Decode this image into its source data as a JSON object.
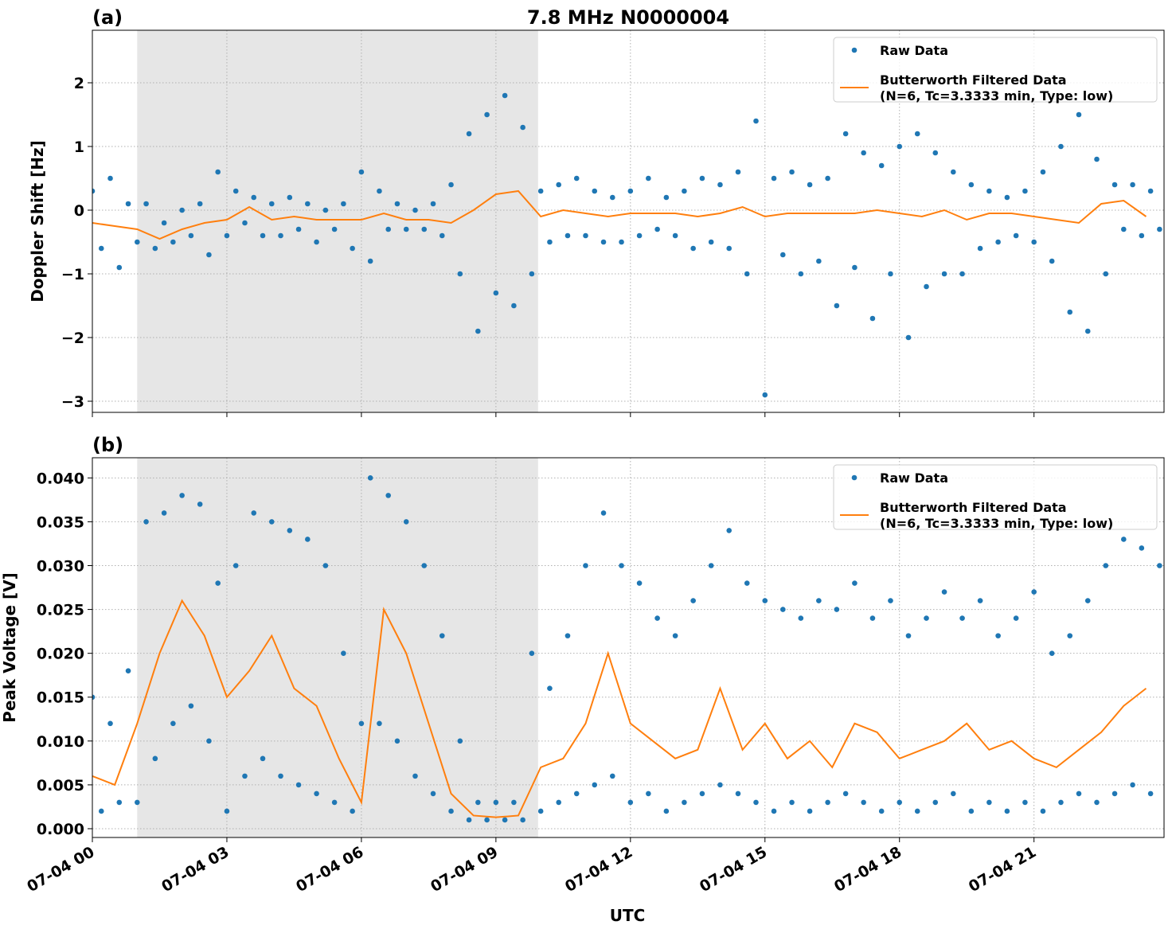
{
  "chart_data": [
    {
      "type": "scatter_line",
      "panel_label": "(a)",
      "title": "7.8 MHz N0000004",
      "ylabel": "Doppler Shift [Hz]",
      "xlim": [
        0,
        23.9
      ],
      "xticks": [
        0,
        3,
        6,
        9,
        12,
        15,
        18,
        21
      ],
      "ylim": [
        -3.175,
        2.825
      ],
      "yticks": [
        {
          "value": -3,
          "label": "−3"
        },
        {
          "value": -2,
          "label": "−2"
        },
        {
          "value": -1,
          "label": "−1"
        },
        0,
        1,
        2
      ],
      "grid": true,
      "legend": "upper-right",
      "shaded_span": [
        1.0,
        9.94
      ],
      "shade_color": "#e6e6e6",
      "series": [
        {
          "name": "Raw Data",
          "kind": "scatter",
          "color": "#1f77b4",
          "x": [
            0.0,
            0.2,
            0.4,
            0.6,
            0.8,
            1.0,
            1.2,
            1.4,
            1.6,
            1.8,
            2.0,
            2.2,
            2.4,
            2.6,
            2.8,
            3.0,
            3.2,
            3.4,
            3.6,
            3.8,
            4.0,
            4.2,
            4.4,
            4.6,
            4.8,
            5.0,
            5.2,
            5.4,
            5.6,
            5.8,
            6.0,
            6.2,
            6.4,
            6.6,
            6.8,
            7.0,
            7.2,
            7.4,
            7.6,
            7.8,
            8.0,
            8.2,
            8.4,
            8.6,
            8.8,
            9.0,
            9.2,
            9.4,
            9.6,
            9.8,
            10.0,
            10.2,
            10.4,
            10.6,
            10.8,
            11.0,
            11.2,
            11.4,
            11.6,
            11.8,
            12.0,
            12.2,
            12.4,
            12.6,
            12.8,
            13.0,
            13.2,
            13.4,
            13.6,
            13.8,
            14.0,
            14.2,
            14.4,
            14.6,
            14.8,
            15.0,
            15.2,
            15.4,
            15.6,
            15.8,
            16.0,
            16.2,
            16.4,
            16.6,
            16.8,
            17.0,
            17.2,
            17.4,
            17.6,
            17.8,
            18.0,
            18.2,
            18.4,
            18.6,
            18.8,
            19.0,
            19.2,
            19.4,
            19.6,
            19.8,
            20.0,
            20.2,
            20.4,
            20.6,
            20.8,
            21.0,
            21.2,
            21.4,
            21.6,
            21.8,
            22.0,
            22.2,
            22.4,
            22.6,
            22.8,
            23.0,
            23.2,
            23.4,
            23.6,
            23.8
          ],
          "values": [
            0.3,
            -0.6,
            0.5,
            -0.9,
            0.1,
            -0.5,
            0.1,
            -0.6,
            -0.2,
            -0.5,
            0.0,
            -0.4,
            0.1,
            -0.7,
            0.6,
            -0.4,
            0.3,
            -0.2,
            0.2,
            -0.4,
            0.1,
            -0.4,
            0.2,
            -0.3,
            0.1,
            -0.5,
            0.0,
            -0.3,
            0.1,
            -0.6,
            0.6,
            -0.8,
            0.3,
            -0.3,
            0.1,
            -0.3,
            0.0,
            -0.3,
            0.1,
            -0.4,
            0.4,
            -1.0,
            1.2,
            -1.9,
            1.5,
            -1.3,
            1.8,
            -1.5,
            1.3,
            -1.0,
            0.3,
            -0.5,
            0.4,
            -0.4,
            0.5,
            -0.4,
            0.3,
            -0.5,
            0.2,
            -0.5,
            0.3,
            -0.4,
            0.5,
            -0.3,
            0.2,
            -0.4,
            0.3,
            -0.6,
            0.5,
            -0.5,
            0.4,
            -0.6,
            0.6,
            -1.0,
            1.4,
            -2.9,
            0.5,
            -0.7,
            0.6,
            -1.0,
            0.4,
            -0.8,
            0.5,
            -1.5,
            1.2,
            -0.9,
            0.9,
            -1.7,
            0.7,
            -1.0,
            1.0,
            -2.0,
            1.2,
            -1.2,
            0.9,
            -1.0,
            0.6,
            -1.0,
            0.4,
            -0.6,
            0.3,
            -0.5,
            0.2,
            -0.4,
            0.3,
            -0.5,
            0.6,
            -0.8,
            1.0,
            -1.6,
            1.5,
            -1.9,
            0.8,
            -1.0,
            0.4,
            -0.3,
            0.4,
            -0.4,
            0.3,
            -0.3
          ]
        },
        {
          "name": "Butterworth Filtered Data\n(N=6, Tc=3.3333 min, Type: low)",
          "kind": "line",
          "color": "#ff7f0e",
          "x": [
            0,
            0.5,
            1,
            1.5,
            2,
            2.5,
            3,
            3.5,
            4,
            4.5,
            5,
            5.5,
            6,
            6.5,
            7,
            7.5,
            8,
            8.5,
            9,
            9.5,
            10,
            10.5,
            11,
            11.5,
            12,
            12.5,
            13,
            13.5,
            14,
            14.5,
            15,
            15.5,
            16,
            16.5,
            17,
            17.5,
            18,
            18.5,
            19,
            19.5,
            20,
            20.5,
            21,
            21.5,
            22,
            22.5,
            23,
            23.5
          ],
          "values": [
            -0.2,
            -0.25,
            -0.3,
            -0.45,
            -0.3,
            -0.2,
            -0.15,
            0.05,
            -0.15,
            -0.1,
            -0.15,
            -0.15,
            -0.15,
            -0.05,
            -0.15,
            -0.15,
            -0.2,
            0.0,
            0.25,
            0.3,
            -0.1,
            0.0,
            -0.05,
            -0.1,
            -0.05,
            -0.05,
            -0.05,
            -0.1,
            -0.05,
            0.05,
            -0.1,
            -0.05,
            -0.05,
            -0.05,
            -0.05,
            0.0,
            -0.05,
            -0.1,
            0.0,
            -0.15,
            -0.05,
            -0.05,
            -0.1,
            -0.15,
            -0.2,
            0.1,
            0.15,
            -0.1
          ]
        }
      ]
    },
    {
      "type": "scatter_line",
      "panel_label": "(b)",
      "ylabel": "Peak Voltage [V]",
      "xlabel": "UTC",
      "xlim": [
        0,
        23.9
      ],
      "xticks": [
        {
          "value": 0,
          "label": "07-04 00"
        },
        {
          "value": 3,
          "label": "07-04 03"
        },
        {
          "value": 6,
          "label": "07-04 06"
        },
        {
          "value": 9,
          "label": "07-04 09"
        },
        {
          "value": 12,
          "label": "07-04 12"
        },
        {
          "value": 15,
          "label": "07-04 15"
        },
        {
          "value": 18,
          "label": "07-04 18"
        },
        {
          "value": 21,
          "label": "07-04 21"
        }
      ],
      "ylim": [
        -0.001,
        0.0423
      ],
      "yticks": [
        {
          "value": 0,
          "label": "0.000"
        },
        {
          "value": 0.005,
          "label": "0.005"
        },
        {
          "value": 0.01,
          "label": "0.010"
        },
        {
          "value": 0.015,
          "label": "0.015"
        },
        {
          "value": 0.02,
          "label": "0.020"
        },
        {
          "value": 0.025,
          "label": "0.025"
        },
        {
          "value": 0.03,
          "label": "0.030"
        },
        {
          "value": 0.035,
          "label": "0.035"
        },
        {
          "value": 0.04,
          "label": "0.040"
        }
      ],
      "grid": true,
      "legend": "upper-right",
      "shaded_span": [
        1.0,
        9.94
      ],
      "shade_color": "#e6e6e6",
      "series": [
        {
          "name": "Raw Data",
          "kind": "scatter",
          "color": "#1f77b4",
          "x": [
            0.0,
            0.2,
            0.4,
            0.6,
            0.8,
            1.0,
            1.2,
            1.4,
            1.6,
            1.8,
            2.0,
            2.2,
            2.4,
            2.6,
            2.8,
            3.0,
            3.2,
            3.4,
            3.6,
            3.8,
            4.0,
            4.2,
            4.4,
            4.6,
            4.8,
            5.0,
            5.2,
            5.4,
            5.6,
            5.8,
            6.0,
            6.2,
            6.4,
            6.6,
            6.8,
            7.0,
            7.2,
            7.4,
            7.6,
            7.8,
            8.0,
            8.2,
            8.4,
            8.6,
            8.8,
            9.0,
            9.2,
            9.4,
            9.6,
            9.8,
            10.0,
            10.2,
            10.4,
            10.6,
            10.8,
            11.0,
            11.2,
            11.4,
            11.6,
            11.8,
            12.0,
            12.2,
            12.4,
            12.6,
            12.8,
            13.0,
            13.2,
            13.4,
            13.6,
            13.8,
            14.0,
            14.2,
            14.4,
            14.6,
            14.8,
            15.0,
            15.2,
            15.4,
            15.6,
            15.8,
            16.0,
            16.2,
            16.4,
            16.6,
            16.8,
            17.0,
            17.2,
            17.4,
            17.6,
            17.8,
            18.0,
            18.2,
            18.4,
            18.6,
            18.8,
            19.0,
            19.2,
            19.4,
            19.6,
            19.8,
            20.0,
            20.2,
            20.4,
            20.6,
            20.8,
            21.0,
            21.2,
            21.4,
            21.6,
            21.8,
            22.0,
            22.2,
            22.4,
            22.6,
            22.8,
            23.0,
            23.2,
            23.4,
            23.6,
            23.8
          ],
          "values": [
            0.015,
            0.002,
            0.012,
            0.003,
            0.018,
            0.003,
            0.035,
            0.008,
            0.036,
            0.012,
            0.038,
            0.014,
            0.037,
            0.01,
            0.028,
            0.002,
            0.03,
            0.006,
            0.036,
            0.008,
            0.035,
            0.006,
            0.034,
            0.005,
            0.033,
            0.004,
            0.03,
            0.003,
            0.02,
            0.002,
            0.012,
            0.04,
            0.012,
            0.038,
            0.01,
            0.035,
            0.006,
            0.03,
            0.004,
            0.022,
            0.002,
            0.01,
            0.001,
            0.003,
            0.001,
            0.003,
            0.001,
            0.003,
            0.001,
            0.02,
            0.002,
            0.016,
            0.003,
            0.022,
            0.004,
            0.03,
            0.005,
            0.036,
            0.006,
            0.03,
            0.003,
            0.028,
            0.004,
            0.024,
            0.002,
            0.022,
            0.003,
            0.026,
            0.004,
            0.03,
            0.005,
            0.034,
            0.004,
            0.028,
            0.003,
            0.026,
            0.002,
            0.025,
            0.003,
            0.024,
            0.002,
            0.026,
            0.003,
            0.025,
            0.004,
            0.028,
            0.003,
            0.024,
            0.002,
            0.026,
            0.003,
            0.022,
            0.002,
            0.024,
            0.003,
            0.027,
            0.004,
            0.024,
            0.002,
            0.026,
            0.003,
            0.022,
            0.002,
            0.024,
            0.003,
            0.027,
            0.002,
            0.02,
            0.003,
            0.022,
            0.004,
            0.026,
            0.003,
            0.03,
            0.004,
            0.033,
            0.005,
            0.032,
            0.004,
            0.03
          ]
        },
        {
          "name": "Butterworth Filtered Data\n(N=6, Tc=3.3333 min, Type: low)",
          "kind": "line",
          "color": "#ff7f0e",
          "x": [
            0,
            0.5,
            1,
            1.5,
            2,
            2.5,
            3,
            3.5,
            4,
            4.5,
            5,
            5.5,
            6,
            6.5,
            7,
            7.5,
            8,
            8.5,
            9,
            9.5,
            10,
            10.5,
            11,
            11.5,
            12,
            12.5,
            13,
            13.5,
            14,
            14.5,
            15,
            15.5,
            16,
            16.5,
            17,
            17.5,
            18,
            18.5,
            19,
            19.5,
            20,
            20.5,
            21,
            21.5,
            22,
            22.5,
            23,
            23.5
          ],
          "values": [
            0.006,
            0.005,
            0.012,
            0.02,
            0.026,
            0.022,
            0.015,
            0.018,
            0.022,
            0.016,
            0.014,
            0.008,
            0.003,
            0.025,
            0.02,
            0.012,
            0.004,
            0.0015,
            0.0013,
            0.0015,
            0.007,
            0.008,
            0.012,
            0.02,
            0.012,
            0.01,
            0.008,
            0.009,
            0.016,
            0.009,
            0.012,
            0.008,
            0.01,
            0.007,
            0.012,
            0.011,
            0.008,
            0.009,
            0.01,
            0.012,
            0.009,
            0.01,
            0.008,
            0.007,
            0.009,
            0.011,
            0.014,
            0.016
          ]
        }
      ]
    }
  ]
}
